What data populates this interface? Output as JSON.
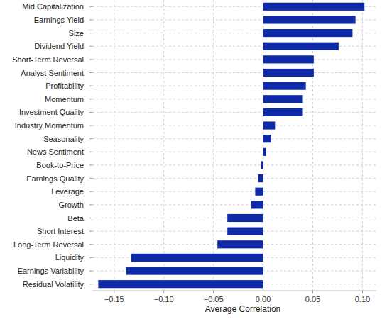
{
  "chart_data": {
    "type": "bar",
    "orientation": "horizontal",
    "x_label": "Average Correlation",
    "categories": [
      "Mid Capitalization",
      "Earnings Yield",
      "Size",
      "Dividend Yield",
      "Short-Term Reversal",
      "Analyst Sentiment",
      "Profitability",
      "Momentum",
      "Investment Quality",
      "Industry Momentum",
      "Seasonality",
      "News Sentiment",
      "Book-to-Price",
      "Earnings Quality",
      "Leverage",
      "Growth",
      "Beta",
      "Short Interest",
      "Long-Term Reversal",
      "Liquidity",
      "Earnings Variability",
      "Residual Volatility"
    ],
    "values": [
      0.102,
      0.093,
      0.09,
      0.076,
      0.051,
      0.051,
      0.043,
      0.04,
      0.04,
      0.012,
      0.008,
      0.003,
      -0.002,
      -0.005,
      -0.008,
      -0.012,
      -0.036,
      -0.036,
      -0.046,
      -0.133,
      -0.138,
      -0.166
    ],
    "color": "#0f2aa6",
    "xlim": [
      -0.172,
      0.114
    ],
    "xticks": [
      {
        "value": -0.15,
        "label": "−0.15"
      },
      {
        "value": -0.1,
        "label": "−0.10"
      },
      {
        "value": -0.05,
        "label": "−0.05"
      },
      {
        "value": 0,
        "label": "0.00"
      },
      {
        "value": 0.05,
        "label": "0.05"
      },
      {
        "value": 0.1,
        "label": "0.10"
      }
    ],
    "grid": true
  }
}
